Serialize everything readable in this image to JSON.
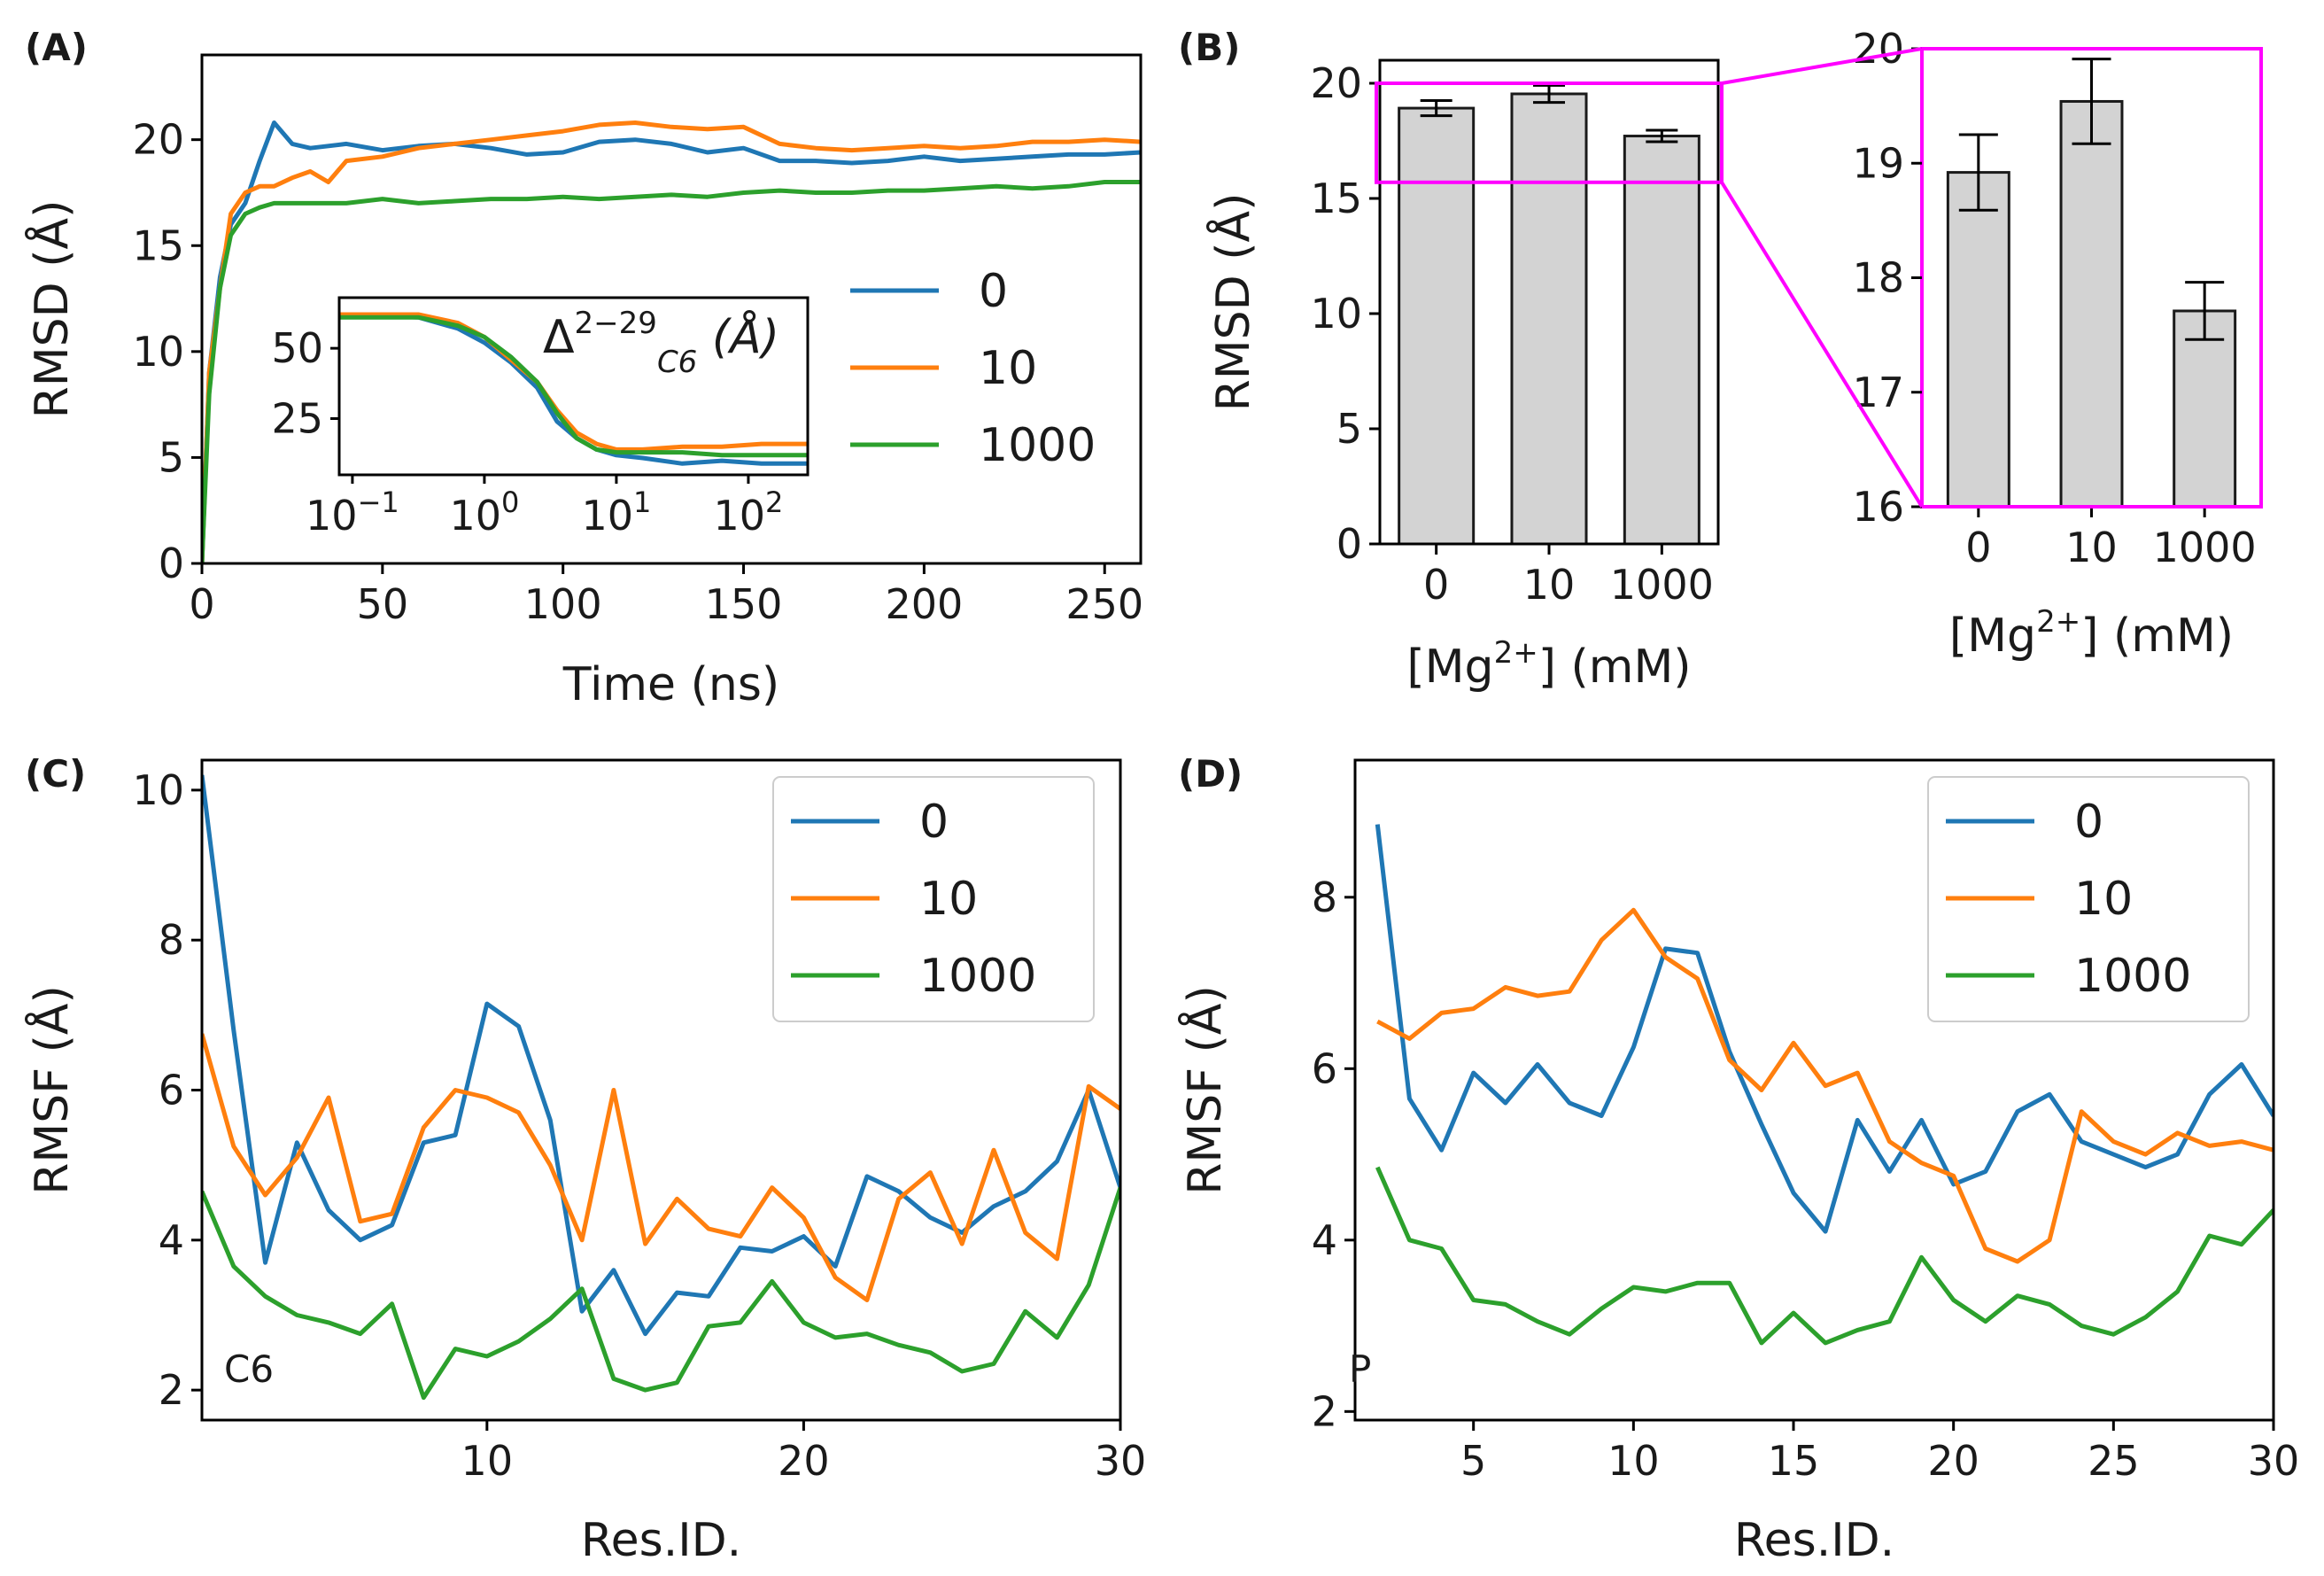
{
  "colors": {
    "s0": "#1f77b4",
    "s10": "#ff7f0e",
    "s1000": "#2ca02c",
    "bar": "#d3d3d3",
    "zoom": "#ff00ff"
  },
  "chart_data": [
    {
      "id": "A",
      "panel_label": "(A)",
      "type": "line",
      "xlabel": "Time (ns)",
      "ylabel": "RMSD (Å)",
      "xlim": [
        0,
        260
      ],
      "ylim": [
        0,
        24
      ],
      "xticks": [
        0,
        50,
        100,
        150,
        200,
        250
      ],
      "yticks": [
        0,
        5,
        10,
        15,
        20
      ],
      "legend": [
        "0",
        "10",
        "1000"
      ],
      "series": [
        {
          "name": "0",
          "x": [
            0,
            2,
            5,
            8,
            12,
            16,
            20,
            25,
            30,
            40,
            50,
            60,
            70,
            80,
            90,
            100,
            110,
            120,
            130,
            140,
            150,
            160,
            170,
            180,
            190,
            200,
            210,
            220,
            230,
            240,
            250,
            260
          ],
          "y": [
            0,
            9,
            13.5,
            16,
            17,
            19,
            20.8,
            19.8,
            19.6,
            19.8,
            19.5,
            19.7,
            19.8,
            19.6,
            19.3,
            19.4,
            19.9,
            20,
            19.8,
            19.4,
            19.6,
            19,
            19,
            18.9,
            19,
            19.2,
            19,
            19.1,
            19.2,
            19.3,
            19.3,
            19.4
          ]
        },
        {
          "name": "10",
          "x": [
            0,
            2,
            5,
            8,
            12,
            16,
            20,
            25,
            30,
            35,
            40,
            50,
            60,
            70,
            80,
            90,
            100,
            110,
            120,
            130,
            140,
            150,
            160,
            170,
            180,
            190,
            200,
            210,
            220,
            230,
            240,
            250,
            260
          ],
          "y": [
            0,
            9,
            13,
            16.5,
            17.5,
            17.8,
            17.8,
            18.2,
            18.5,
            18,
            19,
            19.2,
            19.6,
            19.8,
            20,
            20.2,
            20.4,
            20.7,
            20.8,
            20.6,
            20.5,
            20.6,
            19.8,
            19.6,
            19.5,
            19.6,
            19.7,
            19.6,
            19.7,
            19.9,
            19.9,
            20,
            19.9
          ]
        },
        {
          "name": "1000",
          "x": [
            0,
            2,
            5,
            8,
            12,
            16,
            20,
            30,
            40,
            50,
            60,
            70,
            80,
            90,
            100,
            110,
            120,
            130,
            140,
            150,
            160,
            170,
            180,
            190,
            200,
            210,
            220,
            230,
            240,
            250,
            260
          ],
          "y": [
            0,
            8,
            13,
            15.5,
            16.5,
            16.8,
            17,
            17,
            17,
            17.2,
            17,
            17.1,
            17.2,
            17.2,
            17.3,
            17.2,
            17.3,
            17.4,
            17.3,
            17.5,
            17.6,
            17.5,
            17.5,
            17.6,
            17.6,
            17.7,
            17.8,
            17.7,
            17.8,
            18,
            18
          ]
        }
      ],
      "inset": {
        "label": "Δ",
        "sub": "C6",
        "sup": "2−29",
        "unit": "(Å)",
        "xscale": "log",
        "xlim_log": [
          -1.1,
          2.45
        ],
        "xticks": [
          {
            "base": "10",
            "exp": "−1",
            "v": -1
          },
          {
            "base": "10",
            "exp": "0",
            "v": 0
          },
          {
            "base": "10",
            "exp": "1",
            "v": 1
          },
          {
            "base": "10",
            "exp": "2",
            "v": 2
          }
        ],
        "ylim": [
          5,
          68
        ],
        "yticks": [
          25,
          50
        ],
        "series": [
          {
            "name": "0",
            "logx": [
              -1.1,
              -0.5,
              -0.2,
              0,
              0.2,
              0.4,
              0.55,
              0.7,
              0.85,
              1.0,
              1.2,
              1.5,
              1.8,
              2.1,
              2.45
            ],
            "y": [
              62,
              61,
              57,
              52,
              45,
              36,
              24,
              18,
              14,
              12,
              11,
              9,
              10,
              9,
              9
            ]
          },
          {
            "name": "10",
            "logx": [
              -1.1,
              -0.5,
              -0.2,
              0,
              0.2,
              0.4,
              0.55,
              0.7,
              0.85,
              1.0,
              1.2,
              1.5,
              1.8,
              2.1,
              2.45
            ],
            "y": [
              62,
              62,
              59,
              54,
              46,
              38,
              28,
              20,
              16,
              14,
              14,
              15,
              15,
              16,
              16
            ]
          },
          {
            "name": "1000",
            "logx": [
              -1.1,
              -0.5,
              -0.2,
              0,
              0.2,
              0.4,
              0.55,
              0.7,
              0.85,
              1.0,
              1.2,
              1.5,
              1.8,
              2.1,
              2.45
            ],
            "y": [
              61,
              61,
              58,
              54,
              47,
              38,
              27,
              18,
              14,
              13,
              13,
              13,
              12,
              12,
              12
            ]
          }
        ]
      }
    },
    {
      "id": "B",
      "panel_label": "(B)",
      "type": "bar",
      "categories": [
        "0",
        "10",
        "1000"
      ],
      "values": [
        18.92,
        19.54,
        17.71
      ],
      "errors": [
        0.33,
        0.37,
        0.25
      ],
      "ylabel": "RMSD (Å)",
      "xlabel_pre": "[Mg",
      "xlabel_sup": "2+",
      "xlabel_post": "] (mM)",
      "ylim": [
        0,
        21
      ],
      "yticks": [
        0,
        5,
        10,
        15,
        20
      ],
      "zoom_ylim": [
        15.7,
        20
      ]
    },
    {
      "id": "B-inset",
      "type": "bar",
      "categories": [
        "0",
        "10",
        "1000"
      ],
      "values": [
        18.92,
        19.54,
        17.71
      ],
      "errors": [
        0.33,
        0.37,
        0.25
      ],
      "xlabel_pre": "[Mg",
      "xlabel_sup": "2+",
      "xlabel_post": "] (mM)",
      "ylim": [
        16,
        20
      ],
      "yticks": [
        16,
        17,
        18,
        19,
        20
      ]
    },
    {
      "id": "C",
      "panel_label": "(C)",
      "type": "line",
      "annotation": "C6",
      "xlabel": "Res.ID.",
      "ylabel": "RMSF (Å)",
      "xlim": [
        1,
        30
      ],
      "ylim": [
        1.6,
        10.4
      ],
      "xticks": [
        10,
        20,
        30
      ],
      "yticks": [
        2,
        4,
        6,
        8,
        10
      ],
      "legend": [
        "0",
        "10",
        "1000"
      ],
      "series": [
        {
          "name": "0",
          "x": [
            1,
            2,
            3,
            4,
            5,
            6,
            7,
            8,
            9,
            10,
            11,
            12,
            13,
            14,
            15,
            16,
            17,
            18,
            19,
            20,
            21,
            22,
            23,
            24,
            25,
            26,
            27,
            28,
            29,
            30
          ],
          "y": [
            10.2,
            6.8,
            3.7,
            5.3,
            4.4,
            4.0,
            4.2,
            5.3,
            5.4,
            7.15,
            6.85,
            5.6,
            3.05,
            3.6,
            2.75,
            3.3,
            3.25,
            3.9,
            3.85,
            4.05,
            3.65,
            4.85,
            4.65,
            4.3,
            4.1,
            4.45,
            4.65,
            5.05,
            6.0,
            4.7
          ]
        },
        {
          "name": "10",
          "x": [
            1,
            2,
            3,
            4,
            5,
            6,
            7,
            8,
            9,
            10,
            11,
            12,
            13,
            14,
            15,
            16,
            17,
            18,
            19,
            20,
            21,
            22,
            23,
            24,
            25,
            26,
            27,
            28,
            29,
            30
          ],
          "y": [
            6.75,
            5.25,
            4.6,
            5.1,
            5.9,
            4.25,
            4.35,
            5.5,
            6.0,
            5.9,
            5.7,
            5.0,
            4.0,
            6.0,
            3.95,
            4.55,
            4.15,
            4.05,
            4.7,
            4.3,
            3.5,
            3.2,
            4.55,
            4.9,
            3.95,
            5.2,
            4.1,
            3.75,
            6.05,
            5.75
          ]
        },
        {
          "name": "1000",
          "x": [
            1,
            2,
            3,
            4,
            5,
            6,
            7,
            8,
            9,
            10,
            11,
            12,
            13,
            14,
            15,
            16,
            17,
            18,
            19,
            20,
            21,
            22,
            23,
            24,
            25,
            26,
            27,
            28,
            29,
            30
          ],
          "y": [
            4.65,
            3.65,
            3.25,
            3.0,
            2.9,
            2.75,
            3.15,
            1.9,
            2.55,
            2.45,
            2.65,
            2.95,
            3.35,
            2.15,
            2.0,
            2.1,
            2.85,
            2.9,
            3.45,
            2.9,
            2.7,
            2.75,
            2.6,
            2.5,
            2.25,
            2.35,
            3.05,
            2.7,
            3.4,
            4.7
          ]
        }
      ]
    },
    {
      "id": "D",
      "panel_label": "(D)",
      "type": "line",
      "annotation": "P",
      "xlabel": "Res.ID.",
      "ylabel": "RMSF (Å)",
      "xlim": [
        1.3,
        30
      ],
      "ylim": [
        1.9,
        9.6
      ],
      "xticks": [
        5,
        10,
        15,
        20,
        25,
        30
      ],
      "yticks": [
        2,
        4,
        6,
        8
      ],
      "legend": [
        "0",
        "10",
        "1000"
      ],
      "series": [
        {
          "name": "0",
          "x": [
            2,
            3,
            4,
            5,
            6,
            7,
            8,
            9,
            10,
            11,
            12,
            13,
            14,
            15,
            16,
            17,
            18,
            19,
            20,
            21,
            22,
            23,
            24,
            25,
            26,
            27,
            28,
            29,
            30
          ],
          "y": [
            8.85,
            5.65,
            5.05,
            5.95,
            5.6,
            6.05,
            5.6,
            5.45,
            6.25,
            7.4,
            7.35,
            6.2,
            5.35,
            4.55,
            4.1,
            5.4,
            4.8,
            5.4,
            4.65,
            4.8,
            5.5,
            5.7,
            5.15,
            5.0,
            4.85,
            5.0,
            5.7,
            6.05,
            5.45
          ]
        },
        {
          "name": "10",
          "x": [
            2,
            3,
            4,
            5,
            6,
            7,
            8,
            9,
            10,
            11,
            12,
            13,
            14,
            15,
            16,
            17,
            18,
            19,
            20,
            21,
            22,
            23,
            24,
            25,
            26,
            27,
            28,
            29,
            30
          ],
          "y": [
            6.55,
            6.35,
            6.65,
            6.7,
            6.95,
            6.85,
            6.9,
            7.5,
            7.85,
            7.3,
            7.05,
            6.1,
            5.75,
            6.3,
            5.8,
            5.95,
            5.15,
            4.9,
            4.75,
            3.9,
            3.75,
            4.0,
            5.5,
            5.15,
            5.0,
            5.25,
            5.1,
            5.15,
            5.05
          ]
        },
        {
          "name": "1000",
          "x": [
            2,
            3,
            4,
            5,
            6,
            7,
            8,
            9,
            10,
            11,
            12,
            13,
            14,
            15,
            16,
            17,
            18,
            19,
            20,
            21,
            22,
            23,
            24,
            25,
            26,
            27,
            28,
            29,
            30
          ],
          "y": [
            4.85,
            4.0,
            3.9,
            3.3,
            3.25,
            3.05,
            2.9,
            3.2,
            3.45,
            3.4,
            3.5,
            3.5,
            2.8,
            3.15,
            2.8,
            2.95,
            3.05,
            3.8,
            3.3,
            3.05,
            3.35,
            3.25,
            3.0,
            2.9,
            3.1,
            3.4,
            4.05,
            3.95,
            4.35
          ]
        }
      ]
    }
  ]
}
